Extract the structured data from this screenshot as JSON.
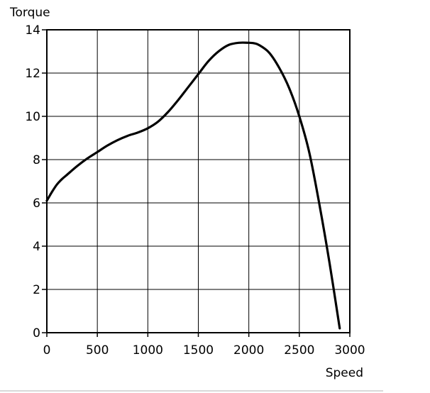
{
  "chart_data": {
    "type": "line",
    "title": "",
    "xlabel": "Speed",
    "ylabel": "Torque",
    "xlim": [
      0,
      3000
    ],
    "ylim": [
      0,
      14
    ],
    "xticks": [
      0,
      500,
      1000,
      1500,
      2000,
      2500,
      3000
    ],
    "yticks": [
      0,
      2,
      4,
      6,
      8,
      10,
      12,
      14
    ],
    "grid": true,
    "legend": "none",
    "colors": {
      "line": "#000000",
      "grid": "#000000",
      "background": "#ffffff"
    },
    "series": [
      {
        "x": [
          0,
          50,
          100,
          150,
          200,
          300,
          400,
          500,
          600,
          700,
          800,
          900,
          1000,
          1100,
          1200,
          1300,
          1400,
          1500,
          1600,
          1700,
          1800,
          1900,
          2000,
          2050,
          2100,
          2200,
          2300,
          2400,
          2500,
          2600,
          2700,
          2800,
          2900
        ],
        "y": [
          6.1,
          6.5,
          6.85,
          7.1,
          7.3,
          7.7,
          8.05,
          8.35,
          8.65,
          8.9,
          9.1,
          9.25,
          9.45,
          9.75,
          10.2,
          10.75,
          11.35,
          11.95,
          12.55,
          13.0,
          13.3,
          13.4,
          13.4,
          13.38,
          13.3,
          12.95,
          12.25,
          11.3,
          10.0,
          8.3,
          5.9,
          3.2,
          0.2
        ]
      }
    ]
  }
}
